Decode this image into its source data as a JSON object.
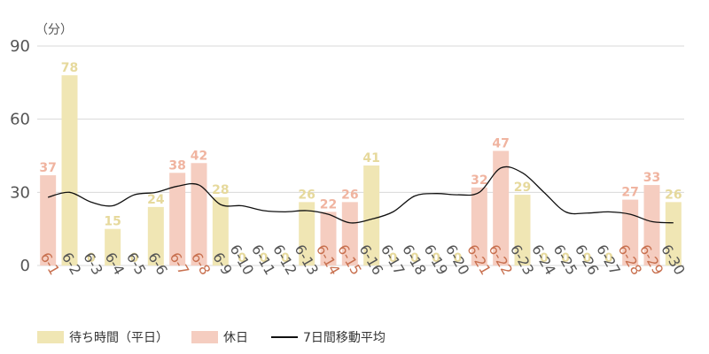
{
  "chart_data": {
    "type": "bar",
    "unit_label": "（分）",
    "ylim": [
      0,
      90
    ],
    "yticks": [
      0,
      30,
      60,
      90
    ],
    "grid": true,
    "legend_position": "bottom-left",
    "categories": [
      "6-1",
      "6-2",
      "6-3",
      "6-4",
      "6-5",
      "6-6",
      "6-7",
      "6-8",
      "6-9",
      "6-10",
      "6-11",
      "6-12",
      "6-13",
      "6-14",
      "6-15",
      "6-16",
      "6-17",
      "6-18",
      "6-19",
      "6-20",
      "6-21",
      "6-22",
      "6-23",
      "6-24",
      "6-25",
      "6-26",
      "6-27",
      "6-28",
      "6-29",
      "6-30"
    ],
    "holidays": [
      true,
      false,
      false,
      false,
      false,
      false,
      true,
      true,
      false,
      false,
      false,
      false,
      false,
      true,
      true,
      false,
      false,
      false,
      false,
      false,
      true,
      true,
      false,
      false,
      false,
      false,
      false,
      true,
      true,
      false
    ],
    "values": [
      37,
      78,
      0,
      15,
      0,
      24,
      38,
      42,
      28,
      0,
      0,
      0,
      26,
      22,
      26,
      41,
      0,
      0,
      0,
      0,
      32,
      47,
      29,
      0,
      0,
      0,
      0,
      27,
      33,
      26
    ],
    "moving_average": [
      28,
      30,
      26,
      24.5,
      29,
      30,
      32.5,
      33,
      25,
      24.5,
      22.5,
      22,
      22.5,
      21,
      17.5,
      19,
      22,
      28.5,
      29.5,
      29,
      30,
      40,
      38,
      30,
      22,
      21.5,
      22,
      21,
      18,
      17.5
    ],
    "series": [
      {
        "name": "待ち時間（平日）",
        "color": "#f0e6b4"
      },
      {
        "name": "休日",
        "color": "#f5cdc0"
      },
      {
        "name": "7日間移動平均",
        "color": "#111111"
      }
    ],
    "colors": {
      "weekday_bar": "#f0e6b4",
      "weekday_label": "#e6d99c",
      "holiday_bar": "#f5cdc0",
      "holiday_label": "#f0b4a0",
      "holiday_tick": "#c8704f",
      "weekday_tick": "#555555",
      "line": "#111111"
    }
  }
}
